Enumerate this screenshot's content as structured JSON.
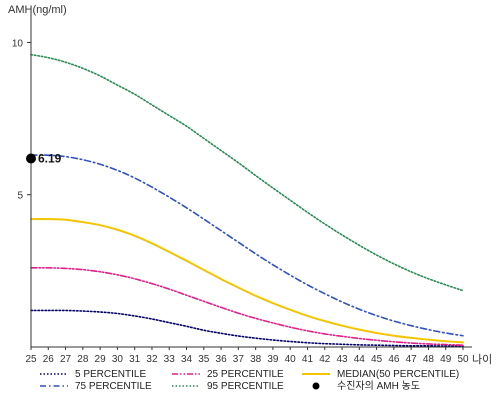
{
  "chart_data": {
    "type": "line",
    "ylabel": "AMH(ng/ml)",
    "xlabel": "나이",
    "xlim": [
      25,
      50
    ],
    "ylim": [
      0,
      11
    ],
    "x_ticks": [
      25,
      26,
      27,
      28,
      29,
      30,
      31,
      32,
      33,
      34,
      35,
      36,
      37,
      38,
      39,
      40,
      41,
      42,
      43,
      44,
      45,
      46,
      47,
      48,
      49,
      50
    ],
    "y_ticks": [
      5,
      10
    ],
    "grid": false,
    "legend_position": "bottom",
    "series": [
      {
        "name": "5 PERCENTILE",
        "color": "#000066",
        "dash": "dotted",
        "x": [
          25,
          26,
          27,
          28,
          29,
          30,
          31,
          32,
          33,
          34,
          35,
          36,
          37,
          38,
          39,
          40,
          41,
          42,
          43,
          44,
          45,
          46,
          47,
          48,
          49,
          50
        ],
        "values": [
          1.2,
          1.2,
          1.2,
          1.18,
          1.15,
          1.1,
          1.02,
          0.92,
          0.8,
          0.68,
          0.55,
          0.45,
          0.36,
          0.29,
          0.23,
          0.18,
          0.14,
          0.11,
          0.09,
          0.07,
          0.06,
          0.05,
          0.04,
          0.04,
          0.03,
          0.03
        ]
      },
      {
        "name": "25 PERCENTILE",
        "color": "#e0208a",
        "dash": "dash-dot-dot",
        "x": [
          25,
          26,
          27,
          28,
          29,
          30,
          31,
          32,
          33,
          34,
          35,
          36,
          37,
          38,
          39,
          40,
          41,
          42,
          43,
          44,
          45,
          46,
          47,
          48,
          49,
          50
        ],
        "values": [
          2.6,
          2.6,
          2.58,
          2.54,
          2.47,
          2.37,
          2.24,
          2.08,
          1.9,
          1.7,
          1.5,
          1.3,
          1.11,
          0.94,
          0.79,
          0.65,
          0.53,
          0.43,
          0.35,
          0.28,
          0.22,
          0.17,
          0.13,
          0.1,
          0.08,
          0.06
        ]
      },
      {
        "name": "MEDIAN(50 PERCENTILE)",
        "color": "#f5c400",
        "dash": "solid",
        "x": [
          25,
          26,
          27,
          28,
          29,
          30,
          31,
          32,
          33,
          34,
          35,
          36,
          37,
          38,
          39,
          40,
          41,
          42,
          43,
          44,
          45,
          46,
          47,
          48,
          49,
          50
        ],
        "values": [
          4.2,
          4.2,
          4.18,
          4.1,
          4.0,
          3.85,
          3.65,
          3.4,
          3.12,
          2.83,
          2.53,
          2.23,
          1.95,
          1.68,
          1.44,
          1.22,
          1.02,
          0.85,
          0.7,
          0.57,
          0.46,
          0.37,
          0.3,
          0.24,
          0.19,
          0.15
        ]
      },
      {
        "name": "75 PERCENTILE",
        "color": "#3050c0",
        "dash": "dash-dot",
        "x": [
          25,
          26,
          27,
          28,
          29,
          30,
          31,
          32,
          33,
          34,
          35,
          36,
          37,
          38,
          39,
          40,
          41,
          42,
          43,
          44,
          45,
          46,
          47,
          48,
          49,
          50
        ],
        "values": [
          6.3,
          6.3,
          6.25,
          6.15,
          6.0,
          5.8,
          5.55,
          5.25,
          4.92,
          4.57,
          4.2,
          3.82,
          3.44,
          3.06,
          2.7,
          2.36,
          2.04,
          1.75,
          1.48,
          1.24,
          1.03,
          0.85,
          0.7,
          0.57,
          0.46,
          0.37
        ]
      },
      {
        "name": "95 PERCENTILE",
        "color": "#2a8a55",
        "dash": "dotted",
        "x": [
          25,
          26,
          27,
          28,
          29,
          30,
          31,
          32,
          33,
          34,
          35,
          36,
          37,
          38,
          39,
          40,
          41,
          42,
          43,
          44,
          45,
          46,
          47,
          48,
          49,
          50
        ],
        "values": [
          9.6,
          9.5,
          9.35,
          9.15,
          8.9,
          8.6,
          8.3,
          7.95,
          7.6,
          7.25,
          6.85,
          6.45,
          6.05,
          5.63,
          5.22,
          4.82,
          4.42,
          4.04,
          3.68,
          3.34,
          3.02,
          2.73,
          2.47,
          2.24,
          2.04,
          1.85
        ]
      }
    ],
    "marker": {
      "name": "수진자의 AMH 농도",
      "x": 25,
      "y": 6.19,
      "label": "6.19",
      "color": "#000000"
    }
  },
  "legend": {
    "items": [
      {
        "label": "5 PERCENTILE",
        "color": "#000066",
        "dash": "dotted",
        "kind": "line"
      },
      {
        "label": "25 PERCENTILE",
        "color": "#e0208a",
        "dash": "dash-dot-dot",
        "kind": "line"
      },
      {
        "label": "MEDIAN(50 PERCENTILE)",
        "color": "#f5c400",
        "dash": "solid",
        "kind": "line"
      },
      {
        "label": "75 PERCENTILE",
        "color": "#3050c0",
        "dash": "dash-dot",
        "kind": "line"
      },
      {
        "label": "95 PERCENTILE",
        "color": "#2a8a55",
        "dash": "dotted",
        "kind": "line"
      },
      {
        "label": "수진자의 AMH 농도",
        "color": "#000000",
        "kind": "dot"
      }
    ]
  }
}
